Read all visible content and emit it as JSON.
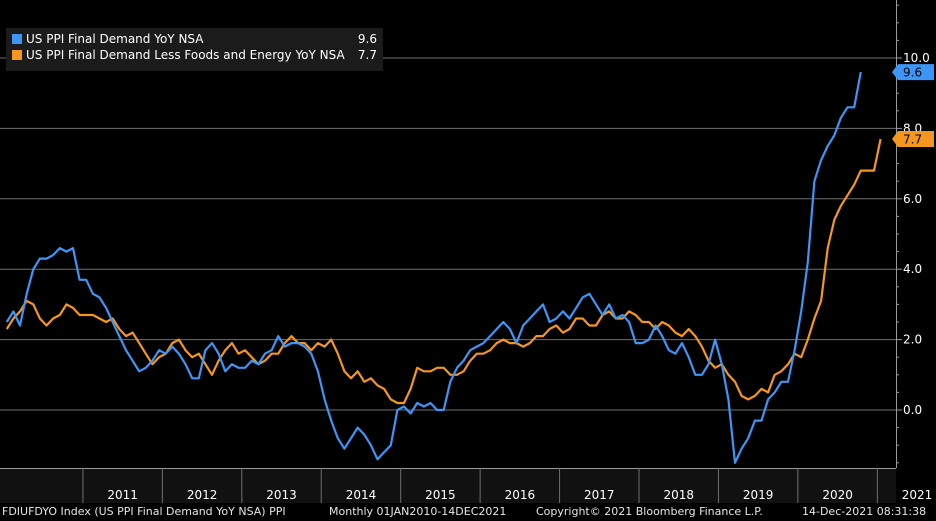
{
  "chart_data": {
    "type": "line",
    "grid": true,
    "ylim": [
      -1.6,
      11.6
    ],
    "yticks": [
      "10.0",
      "8.0",
      "6.0",
      "4.0",
      "2.0",
      "0.0"
    ],
    "year_labels": [
      "2011",
      "2012",
      "2013",
      "2014",
      "2015",
      "2016",
      "2017",
      "2018",
      "2019",
      "2020",
      "2021"
    ],
    "x_start": "2010-01",
    "series": [
      {
        "name": "US PPI Final Demand YoY NSA",
        "last_value": "9.6",
        "color": "#3d95f5",
        "values": [
          2.5,
          2.8,
          2.4,
          3.3,
          4.0,
          4.3,
          4.3,
          4.4,
          4.6,
          4.5,
          4.6,
          3.7,
          3.7,
          3.3,
          3.2,
          2.9,
          2.5,
          2.1,
          1.7,
          1.4,
          1.1,
          1.2,
          1.4,
          1.7,
          1.6,
          1.8,
          1.6,
          1.3,
          0.9,
          0.9,
          1.7,
          1.9,
          1.6,
          1.1,
          1.3,
          1.2,
          1.2,
          1.4,
          1.3,
          1.6,
          1.7,
          2.1,
          1.8,
          1.9,
          1.9,
          1.8,
          1.6,
          1.1,
          0.3,
          -0.3,
          -0.8,
          -1.1,
          -0.8,
          -0.5,
          -0.7,
          -1.0,
          -1.4,
          -1.2,
          -1.0,
          0.0,
          0.1,
          -0.1,
          0.2,
          0.1,
          0.2,
          0.0,
          0.0,
          0.8,
          1.2,
          1.4,
          1.7,
          1.8,
          1.9,
          2.1,
          2.3,
          2.5,
          2.3,
          1.9,
          2.4,
          2.6,
          2.8,
          3.0,
          2.5,
          2.6,
          2.8,
          2.6,
          2.9,
          3.2,
          3.3,
          3.0,
          2.7,
          3.0,
          2.6,
          2.7,
          2.5,
          1.9,
          1.9,
          2.0,
          2.4,
          2.1,
          1.7,
          1.6,
          1.9,
          1.5,
          1.0,
          1.0,
          1.3,
          2.0,
          1.3,
          0.3,
          -1.5,
          -1.1,
          -0.8,
          -0.3,
          -0.3,
          0.3,
          0.5,
          0.8,
          0.8,
          1.7,
          2.8,
          4.2,
          6.5,
          7.1,
          7.5,
          7.8,
          8.3,
          8.6,
          8.6,
          9.6
        ]
      },
      {
        "name": "US PPI Final Demand Less Foods and Energy YoY NSA",
        "last_value": "7.7",
        "color": "#f5961e",
        "values": [
          2.3,
          2.6,
          2.8,
          3.1,
          3.0,
          2.6,
          2.4,
          2.6,
          2.7,
          3.0,
          2.9,
          2.7,
          2.7,
          2.7,
          2.6,
          2.5,
          2.6,
          2.3,
          2.1,
          2.2,
          1.9,
          1.6,
          1.3,
          1.5,
          1.6,
          1.9,
          2.0,
          1.7,
          1.5,
          1.6,
          1.3,
          1.0,
          1.4,
          1.7,
          1.9,
          1.6,
          1.7,
          1.5,
          1.3,
          1.4,
          1.6,
          1.6,
          1.9,
          2.1,
          1.9,
          1.9,
          1.7,
          1.9,
          1.8,
          2.0,
          1.6,
          1.1,
          0.9,
          1.1,
          0.8,
          0.9,
          0.7,
          0.6,
          0.3,
          0.2,
          0.2,
          0.6,
          1.2,
          1.1,
          1.1,
          1.2,
          1.2,
          1.0,
          1.0,
          1.1,
          1.4,
          1.6,
          1.6,
          1.7,
          1.9,
          2.0,
          1.9,
          1.9,
          1.8,
          1.9,
          2.1,
          2.1,
          2.3,
          2.4,
          2.2,
          2.3,
          2.6,
          2.6,
          2.4,
          2.4,
          2.7,
          2.8,
          2.6,
          2.6,
          2.8,
          2.7,
          2.5,
          2.5,
          2.3,
          2.5,
          2.4,
          2.2,
          2.1,
          2.3,
          2.1,
          1.8,
          1.4,
          1.2,
          1.3,
          1.0,
          0.8,
          0.4,
          0.3,
          0.4,
          0.6,
          0.5,
          1.0,
          1.1,
          1.3,
          1.6,
          1.5,
          2.0,
          2.6,
          3.1,
          4.6,
          5.4,
          5.8,
          6.1,
          6.4,
          6.8,
          6.8,
          6.8,
          7.7
        ]
      }
    ]
  },
  "footer": {
    "index": "FDIUFDYO Index (US PPI Final Demand YoY NSA) PPI",
    "frequency": "Monthly 01JAN2010-14DEC2021",
    "copyright": "Copyright© 2021 Bloomberg Finance L.P.",
    "timestamp": "14-Dec-2021 08:31:38"
  }
}
